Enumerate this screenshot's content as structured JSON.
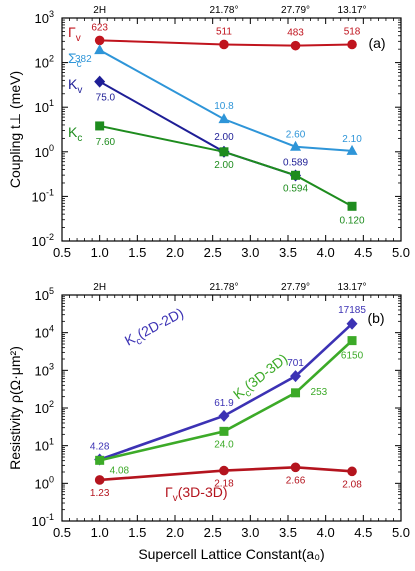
{
  "chart_data": [
    {
      "type": "line",
      "panel_label": "(a)",
      "ylabel": "Coupling t⊥ (meV)",
      "yscale": "log",
      "ylim": [
        0.01,
        1000
      ],
      "xlim": [
        0.5,
        5.0
      ],
      "x_ticks": [
        "0.5",
        "1.0",
        "1.5",
        "2.0",
        "2.5",
        "3.0",
        "3.5",
        "4.0",
        "4.5",
        "5.0"
      ],
      "y_ticks": [
        {
          "value": 0.01,
          "mant": "10",
          "exp": "-2"
        },
        {
          "value": 0.1,
          "mant": "10",
          "exp": "-1"
        },
        {
          "value": 1,
          "mant": "10",
          "exp": "0"
        },
        {
          "value": 10,
          "mant": "10",
          "exp": "1"
        },
        {
          "value": 100,
          "mant": "10",
          "exp": "2"
        },
        {
          "value": 1000,
          "mant": "10",
          "exp": "3"
        }
      ],
      "top_axis_labels": [
        {
          "x": 1.0,
          "label": "2H"
        },
        {
          "x": 2.65,
          "label": "21.78°"
        },
        {
          "x": 3.6,
          "label": "27.79°"
        },
        {
          "x": 4.35,
          "label": "13.17°"
        }
      ],
      "series": [
        {
          "name": "Γv",
          "name_main": "Γ",
          "name_sub": "v",
          "color": "#c0141e",
          "marker": "circle",
          "x": [
            1.0,
            2.65,
            3.6,
            4.35
          ],
          "values": [
            315,
            255,
            240,
            255
          ],
          "labels": [
            "623",
            "511",
            "483",
            "518"
          ]
        },
        {
          "name": "Σc",
          "name_main": "Σ",
          "name_sub": "c",
          "color": "#2e95d8",
          "marker": "triangle",
          "x": [
            1.0,
            2.65,
            3.6,
            4.35
          ],
          "values": [
            191,
            5.4,
            1.3,
            1.05
          ],
          "labels": [
            "382",
            "10.8",
            "2.60",
            "2.10"
          ]
        },
        {
          "name": "Kv",
          "name_main": "K",
          "name_sub": "v",
          "color": "#1e1e96",
          "marker": "diamond",
          "x": [
            1.0,
            2.65,
            3.6
          ],
          "values": [
            37.5,
            1.0,
            0.295
          ],
          "labels": [
            "75.0",
            "2.00",
            "0.589"
          ]
        },
        {
          "name": "Kc",
          "name_main": "K",
          "name_sub": "c",
          "color": "#1e8c1e",
          "marker": "square",
          "x": [
            1.0,
            2.65,
            3.6,
            4.35
          ],
          "values": [
            3.8,
            1.0,
            0.297,
            0.06
          ],
          "labels": [
            "7.60",
            "2.00",
            "0.594",
            "0.120"
          ]
        }
      ]
    },
    {
      "type": "line",
      "panel_label": "(b)",
      "ylabel": "Resistivity ρ(Ω·μm²)",
      "xlabel": "Supercell Lattice Constant(a₀)",
      "yscale": "log",
      "ylim": [
        0.1,
        100000
      ],
      "xlim": [
        0.5,
        5.0
      ],
      "x_ticks": [
        "0.5",
        "1.0",
        "1.5",
        "2.0",
        "2.5",
        "3.0",
        "3.5",
        "4.0",
        "4.5",
        "5.0"
      ],
      "y_ticks": [
        {
          "value": 0.1,
          "mant": "10",
          "exp": "-1"
        },
        {
          "value": 1,
          "mant": "10",
          "exp": "0"
        },
        {
          "value": 10,
          "mant": "10",
          "exp": "1"
        },
        {
          "value": 100,
          "mant": "10",
          "exp": "2"
        },
        {
          "value": 1000,
          "mant": "10",
          "exp": "3"
        },
        {
          "value": 10000,
          "mant": "10",
          "exp": "4"
        },
        {
          "value": 100000,
          "mant": "10",
          "exp": "5"
        }
      ],
      "top_axis_labels": [
        {
          "x": 1.0,
          "label": "2H"
        },
        {
          "x": 2.65,
          "label": "21.78°"
        },
        {
          "x": 3.6,
          "label": "27.79°"
        },
        {
          "x": 4.35,
          "label": "13.17°"
        }
      ],
      "series": [
        {
          "name": "Kc(2D-2D)",
          "name_main": "K",
          "name_sub": "c",
          "name_rest": "(2D-2D)",
          "color": "#3c32b4",
          "marker": "diamond",
          "x": [
            1.0,
            2.65,
            3.6,
            4.35
          ],
          "values": [
            4.28,
            61.9,
            701,
            17185
          ],
          "labels": [
            "4.28",
            "61.9",
            "701",
            "17185"
          ]
        },
        {
          "name": "Kc(3D-3D)",
          "name_main": "K",
          "name_sub": "c",
          "name_rest": "(3D-3D)",
          "color": "#3caa28",
          "marker": "square",
          "x": [
            1.0,
            2.65,
            3.6,
            4.35
          ],
          "values": [
            4.08,
            24.0,
            253,
            6150
          ],
          "labels": [
            "4.08",
            "24.0",
            "253",
            "6150"
          ]
        },
        {
          "name": "Γv(3D-3D)",
          "name_main": "Γ",
          "name_sub": "v",
          "name_rest": "(3D-3D)",
          "color": "#b4141e",
          "marker": "circle",
          "x": [
            1.0,
            2.65,
            3.6,
            4.35
          ],
          "values": [
            1.23,
            2.18,
            2.66,
            2.08
          ],
          "labels": [
            "1.23",
            "2.18",
            "2.66",
            "2.08"
          ]
        }
      ]
    }
  ]
}
